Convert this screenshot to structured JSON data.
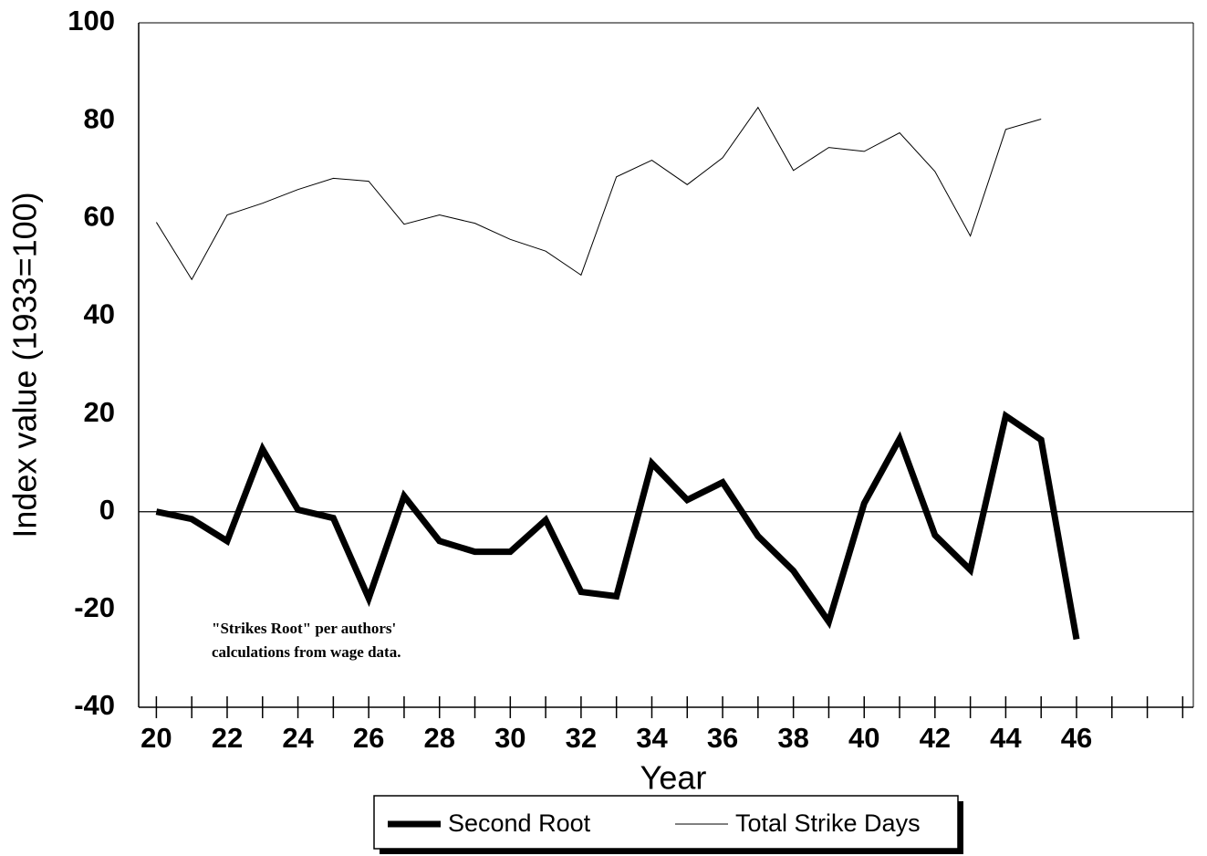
{
  "chart_data": {
    "type": "line",
    "x_label": "Year",
    "y_label": "Index value (1933=100)",
    "x": [
      20,
      21,
      22,
      23,
      24,
      25,
      26,
      27,
      28,
      29,
      30,
      31,
      32,
      33,
      34,
      35,
      36,
      37,
      38,
      39,
      40,
      41,
      42,
      43,
      44,
      45,
      46
    ],
    "series": [
      {
        "name": "Second Root",
        "color": "#000000",
        "linewidth": 7,
        "values": [
          0,
          -1.5,
          -6,
          12.8,
          0.4,
          -1.3,
          -17.7,
          3.2,
          -6,
          -8.2,
          -8.2,
          -1.7,
          -16.4,
          -17.3,
          9.9,
          2.4,
          6,
          -5,
          -12.1,
          -22.5,
          1.7,
          14.9,
          -4.8,
          -11.9,
          19.6,
          14.7,
          -26.1
        ]
      },
      {
        "name": "Total Strike Days",
        "color": "#000000",
        "linewidth": 1,
        "values": [
          59.2,
          47.5,
          60.7,
          63.1,
          65.9,
          68.2,
          67.6,
          58.8,
          60.7,
          59,
          55.7,
          53.3,
          48.4,
          68.5,
          71.9,
          66.9,
          72.4,
          82.7,
          69.8,
          74.5,
          73.7,
          77.5,
          69.6,
          56.4,
          78.2,
          80.3,
          null
        ]
      }
    ],
    "xlim": [
      19.5,
      49.3
    ],
    "xticks": [
      20,
      22,
      24,
      26,
      28,
      30,
      32,
      34,
      36,
      38,
      40,
      42,
      44,
      46
    ],
    "xminorticks": [
      21,
      23,
      25,
      27,
      29,
      31,
      33,
      35,
      37,
      39,
      41,
      43,
      45,
      47,
      48,
      49
    ],
    "ylim": [
      -40,
      100
    ],
    "yticks": [
      -40,
      -20,
      0,
      20,
      40,
      60,
      80,
      100
    ],
    "hline": 0,
    "annotation": [
      "\"Strikes  Root\" per authors'",
      "calculations from wage data."
    ],
    "legend": "bottom",
    "grid": false
  }
}
